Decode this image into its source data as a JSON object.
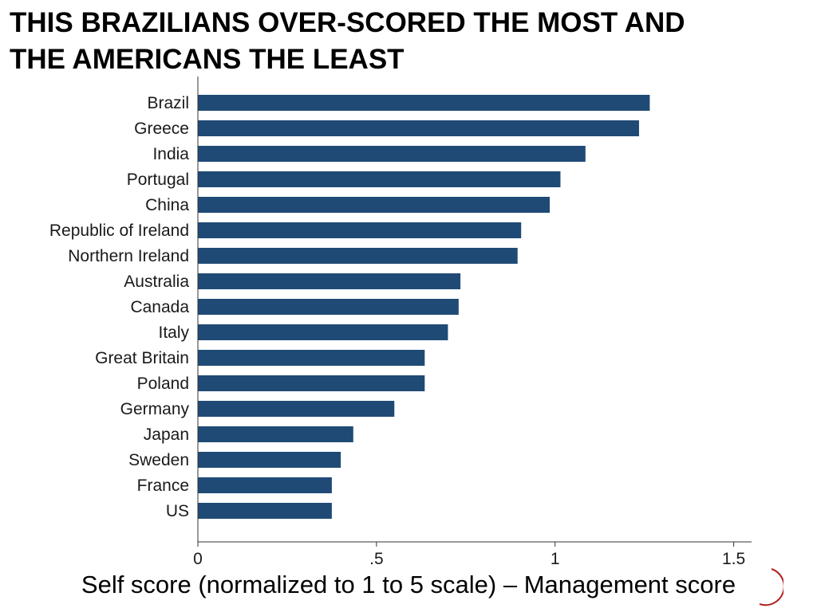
{
  "slide": {
    "title_line1": "THIS BRAZILIANS OVER-SCORED THE MOST AND",
    "title_line2": "THE AMERICANS THE LEAST"
  },
  "chart_data": {
    "type": "bar",
    "orientation": "horizontal",
    "categories": [
      "Brazil",
      "Greece",
      "India",
      "Portugal",
      "China",
      "Republic of Ireland",
      "Northern Ireland",
      "Australia",
      "Canada",
      "Italy",
      "Great Britain",
      "Poland",
      "Germany",
      "Japan",
      "Sweden",
      "France",
      "US"
    ],
    "values": [
      1.265,
      1.235,
      1.085,
      1.015,
      0.985,
      0.905,
      0.895,
      0.735,
      0.73,
      0.7,
      0.635,
      0.635,
      0.55,
      0.435,
      0.4,
      0.375,
      0.375
    ],
    "xlabel": "Self score (normalized to 1 to 5 scale) – Management score",
    "ylabel": "",
    "xlim": [
      0,
      1.55
    ],
    "xticks": [
      0,
      0.5,
      1,
      1.5
    ],
    "xtick_labels": [
      "0",
      ".5",
      "1",
      "1.5"
    ],
    "bar_color": "#1f4a75",
    "grid": false,
    "accent_color": "#b22222"
  }
}
